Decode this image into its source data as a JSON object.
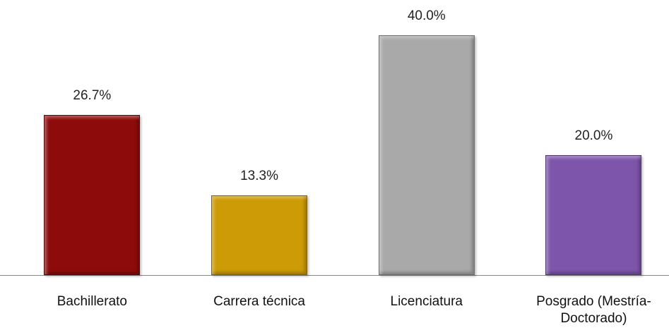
{
  "chart_data": {
    "type": "bar",
    "categories": [
      "Bachillerato",
      "Carrera técnica",
      "Licenciatura",
      "Posgrado (Mestría-Doctorado)"
    ],
    "values": [
      26.7,
      13.3,
      40.0,
      20.0
    ],
    "value_labels": [
      "26.7%",
      "13.3%",
      "40.0%",
      "20.0%"
    ],
    "colors": [
      "#8e0b0b",
      "#cc9b06",
      "#a9a9a9",
      "#7d55aa"
    ]
  }
}
